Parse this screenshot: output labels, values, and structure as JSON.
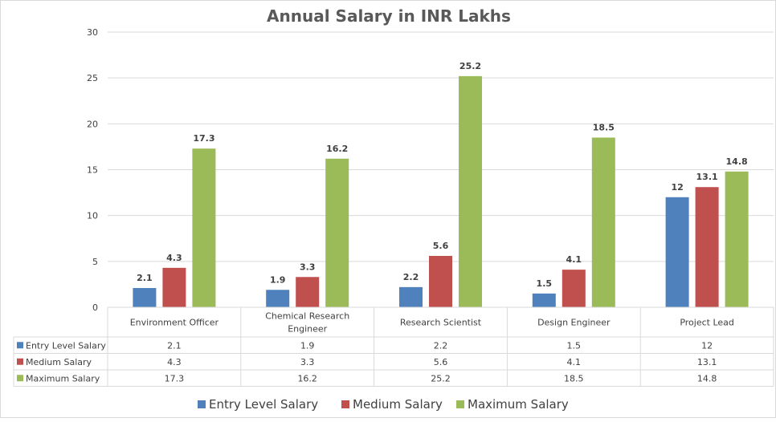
{
  "chart_data": {
    "type": "bar",
    "title": "Annual Salary in INR Lakhs",
    "xlabel": "",
    "ylabel": "",
    "ylim": [
      0,
      30
    ],
    "yticks": [
      0,
      5,
      10,
      15,
      20,
      25,
      30
    ],
    "grid": true,
    "legend_position": "bottom",
    "data_table": true,
    "categories": [
      "Environment Officer",
      "Chemical Research Engineer",
      "Research Scientist",
      "Design Engineer",
      "Project Lead"
    ],
    "category_lines": [
      [
        "Environment Officer"
      ],
      [
        "Chemical Research",
        "Engineer"
      ],
      [
        "Research Scientist"
      ],
      [
        "Design Engineer"
      ],
      [
        "Project Lead"
      ]
    ],
    "series": [
      {
        "name": "Entry Level Salary",
        "color": "#4f81bd",
        "values": [
          2.1,
          1.9,
          2.2,
          1.5,
          12
        ],
        "labels": [
          "2.1",
          "1.9",
          "2.2",
          "1.5",
          "12"
        ]
      },
      {
        "name": "Medium Salary",
        "color": "#c0504d",
        "values": [
          4.3,
          3.3,
          5.6,
          4.1,
          13.1
        ],
        "labels": [
          "4.3",
          "3.3",
          "5.6",
          "4.1",
          "13.1"
        ]
      },
      {
        "name": "Maximum Salary",
        "color": "#9bbb59",
        "values": [
          17.3,
          16.2,
          25.2,
          18.5,
          14.8
        ],
        "labels": [
          "17.3",
          "16.2",
          "25.2",
          "18.5",
          "14.8"
        ]
      }
    ]
  }
}
